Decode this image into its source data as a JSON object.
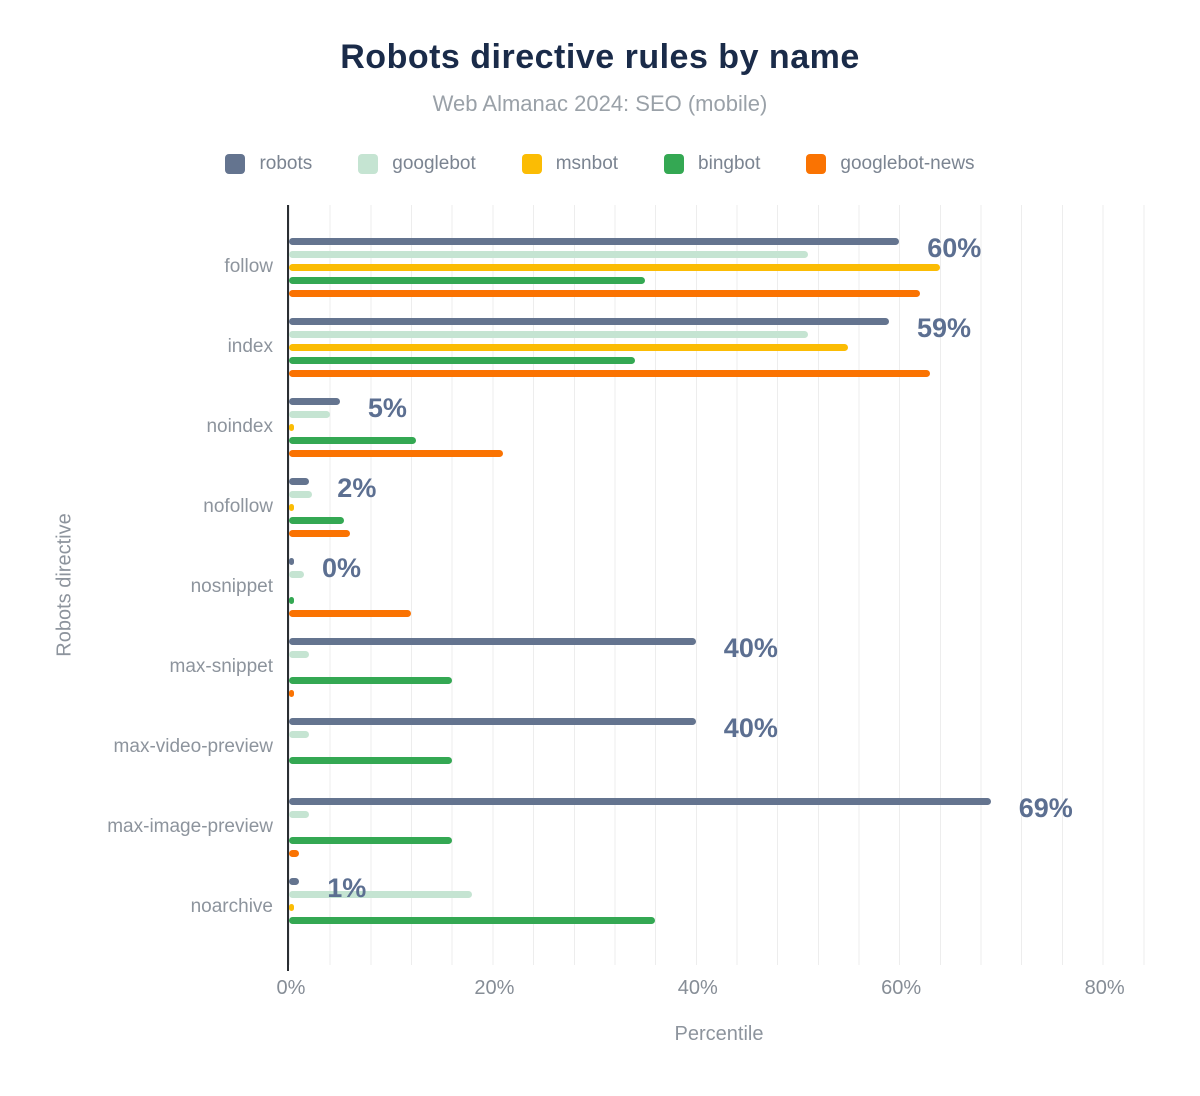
{
  "chart_data": {
    "type": "bar",
    "orientation": "horizontal",
    "title": "Robots directive rules by name",
    "subtitle": "Web Almanac 2024: SEO (mobile)",
    "xlabel": "Percentile",
    "ylabel": "Robots directive",
    "xlim": [
      0,
      84
    ],
    "grid": true,
    "gridline_step_pct": 4,
    "legend_position": "top",
    "x_ticks": [
      {
        "value": 0,
        "label": "0%"
      },
      {
        "value": 20,
        "label": "20%"
      },
      {
        "value": 40,
        "label": "40%"
      },
      {
        "value": 60,
        "label": "60%"
      },
      {
        "value": 80,
        "label": "80%"
      }
    ],
    "categories": [
      "follow",
      "index",
      "noindex",
      "nofollow",
      "nosnippet",
      "max-snippet",
      "max-video-preview",
      "max-image-preview",
      "noarchive"
    ],
    "series": [
      {
        "name": "robots",
        "color": "#64748f",
        "values": [
          60,
          59,
          5,
          2,
          0.4,
          40,
          40,
          69,
          1
        ]
      },
      {
        "name": "googlebot",
        "color": "#c5e4d2",
        "values": [
          51,
          51,
          4,
          2.3,
          1.5,
          2,
          2,
          2,
          18
        ]
      },
      {
        "name": "msnbot",
        "color": "#fbbc04",
        "values": [
          64,
          55,
          0.4,
          0.5,
          0,
          0,
          0,
          0,
          0.4
        ]
      },
      {
        "name": "bingbot",
        "color": "#34a853",
        "values": [
          35,
          34,
          12.5,
          5.4,
          0.5,
          16,
          16,
          16,
          36
        ]
      },
      {
        "name": "googlebot-news",
        "color": "#fa7302",
        "values": [
          62,
          63,
          21,
          6,
          12,
          0.3,
          0,
          1,
          0
        ]
      }
    ],
    "robots_value_labels": [
      "60%",
      "59%",
      "5%",
      "2%",
      "0%",
      "40%",
      "40%",
      "69%",
      "1%"
    ],
    "palette": {
      "title": "#1a2b49",
      "subtitle": "#9aa1a8",
      "axis_label": "#8d949d",
      "tick_label": "#868d96",
      "data_label": "#5c6f91",
      "axis_line": "#2a2e33",
      "gridline": "#ededed"
    }
  }
}
